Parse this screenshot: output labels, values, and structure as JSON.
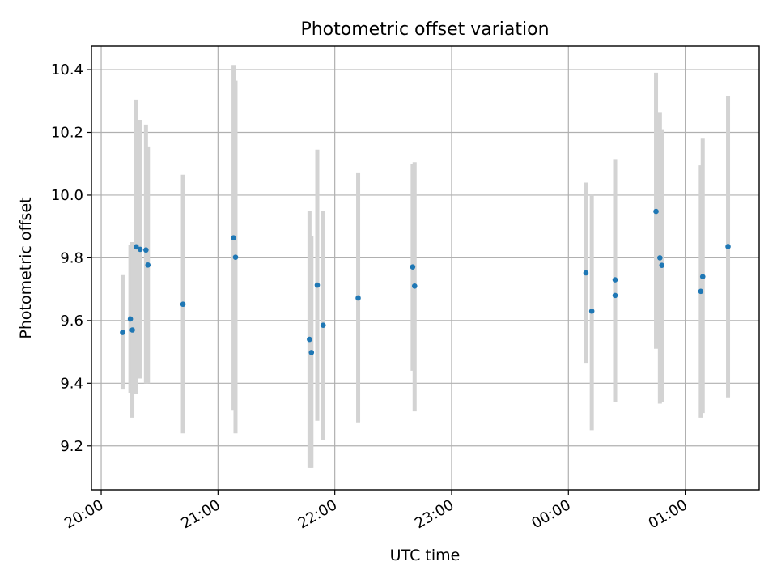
{
  "chart_data": {
    "type": "scatter",
    "title": "Photometric offset variation",
    "xlabel": "UTC time",
    "ylabel": "Photometric offset",
    "xlim": [
      "19:55",
      "01:38"
    ],
    "ylim": [
      9.06,
      10.475
    ],
    "x_ticks": [
      "20:00",
      "21:00",
      "22:00",
      "23:00",
      "00:00",
      "01:00"
    ],
    "y_ticks": [
      9.2,
      9.4,
      9.6,
      9.8,
      10.0,
      10.2,
      10.4
    ],
    "y_tick_labels": [
      "9.2",
      "9.4",
      "9.6",
      "9.8",
      "10.0",
      "10.2",
      "10.4"
    ],
    "grid": true,
    "colors": {
      "point": "#1f77b4",
      "errorbar": "#d3d3d3",
      "grid": "#b0b0b0"
    },
    "points": [
      {
        "time": "20:11",
        "y": 9.562,
        "ylow": 9.38,
        "yhigh": 9.745
      },
      {
        "time": "20:15",
        "y": 9.605,
        "ylow": 9.37,
        "yhigh": 9.84
      },
      {
        "time": "20:16",
        "y": 9.57,
        "ylow": 9.29,
        "yhigh": 9.85
      },
      {
        "time": "20:18",
        "y": 9.835,
        "ylow": 9.365,
        "yhigh": 10.305
      },
      {
        "time": "20:20",
        "y": 9.827,
        "ylow": 9.415,
        "yhigh": 10.24
      },
      {
        "time": "20:23",
        "y": 9.825,
        "ylow": 9.4,
        "yhigh": 10.225
      },
      {
        "time": "20:24",
        "y": 9.777,
        "ylow": 9.4,
        "yhigh": 10.155
      },
      {
        "time": "20:42",
        "y": 9.652,
        "ylow": 9.24,
        "yhigh": 10.065
      },
      {
        "time": "21:08",
        "y": 9.864,
        "ylow": 9.315,
        "yhigh": 10.415
      },
      {
        "time": "21:09",
        "y": 9.802,
        "ylow": 9.24,
        "yhigh": 10.365
      },
      {
        "time": "21:47",
        "y": 9.54,
        "ylow": 9.13,
        "yhigh": 9.95
      },
      {
        "time": "21:48",
        "y": 9.498,
        "ylow": 9.13,
        "yhigh": 9.87
      },
      {
        "time": "21:51",
        "y": 9.713,
        "ylow": 9.28,
        "yhigh": 10.145
      },
      {
        "time": "21:54",
        "y": 9.585,
        "ylow": 9.22,
        "yhigh": 9.95
      },
      {
        "time": "22:12",
        "y": 9.672,
        "ylow": 9.275,
        "yhigh": 10.07
      },
      {
        "time": "22:40",
        "y": 9.771,
        "ylow": 9.44,
        "yhigh": 10.1
      },
      {
        "time": "22:41",
        "y": 9.71,
        "ylow": 9.31,
        "yhigh": 10.105
      },
      {
        "time": "00:09",
        "y": 9.752,
        "ylow": 9.465,
        "yhigh": 10.04
      },
      {
        "time": "00:12",
        "y": 9.63,
        "ylow": 9.25,
        "yhigh": 10.005
      },
      {
        "time": "00:24",
        "y": 9.73,
        "ylow": 9.34,
        "yhigh": 10.115
      },
      {
        "time": "00:24",
        "y": 9.68,
        "ylow": 9.345,
        "yhigh": 10.015
      },
      {
        "time": "00:45",
        "y": 9.948,
        "ylow": 9.51,
        "yhigh": 10.39
      },
      {
        "time": "00:47",
        "y": 9.8,
        "ylow": 9.335,
        "yhigh": 10.265
      },
      {
        "time": "00:48",
        "y": 9.776,
        "ylow": 9.34,
        "yhigh": 10.21
      },
      {
        "time": "01:08",
        "y": 9.693,
        "ylow": 9.29,
        "yhigh": 10.095
      },
      {
        "time": "01:09",
        "y": 9.74,
        "ylow": 9.305,
        "yhigh": 10.18
      },
      {
        "time": "01:22",
        "y": 9.836,
        "ylow": 9.355,
        "yhigh": 10.315
      }
    ]
  }
}
